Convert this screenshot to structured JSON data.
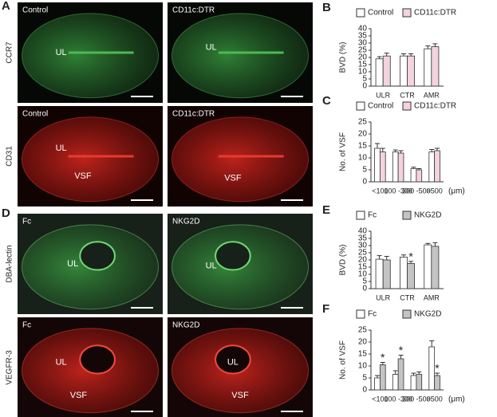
{
  "panel_a": {
    "letter": "A",
    "stains": [
      "CCR7",
      "CD31"
    ],
    "images": [
      {
        "caption": "Control",
        "labels": [
          "UL"
        ]
      },
      {
        "caption": "CD11c:DTR",
        "labels": [
          "UL"
        ]
      },
      {
        "caption": "Control",
        "labels": [
          "UL",
          "VSF"
        ]
      },
      {
        "caption": "CD11c:DTR",
        "labels": [
          "VSF"
        ]
      }
    ]
  },
  "panel_d": {
    "letter": "D",
    "stains": [
      "DBA-lectin",
      "VEGFR-3"
    ],
    "images": [
      {
        "caption": "Fc",
        "labels": [
          "UL"
        ]
      },
      {
        "caption": "NKG2D",
        "labels": [
          "UL"
        ]
      },
      {
        "caption": "Fc",
        "labels": [
          "UL",
          "VSF"
        ]
      },
      {
        "caption": "NKG2D",
        "labels": [
          "UL",
          "VSF"
        ]
      }
    ]
  },
  "chart_data": [
    {
      "type": "bar",
      "panel": "B",
      "y_label": "BVD (%)",
      "categories": [
        "ULR",
        "CTR",
        "AMR"
      ],
      "ylim": [
        0,
        40
      ],
      "yticks": [
        0,
        5,
        10,
        15,
        20,
        25,
        30,
        35,
        40
      ],
      "series": [
        {
          "name": "Control",
          "color": "#ffffff",
          "values": [
            19,
            21,
            26
          ],
          "errors": [
            1.5,
            1.5,
            2
          ]
        },
        {
          "name": "CD11c:DTR",
          "color": "#f3d3de",
          "values": [
            21,
            21,
            27.5
          ],
          "errors": [
            2,
            1.5,
            2
          ]
        }
      ]
    },
    {
      "type": "bar",
      "panel": "C",
      "y_label": "No. of VSF",
      "x_unit": "(μm)",
      "categories": [
        "<100",
        "100 -300",
        "300 -500",
        ">500"
      ],
      "ylim": [
        0,
        25
      ],
      "yticks": [
        0,
        5,
        10,
        15,
        20,
        25
      ],
      "series": [
        {
          "name": "Control",
          "color": "#ffffff",
          "values": [
            14,
            12.5,
            5.5,
            12.5
          ],
          "errors": [
            2,
            0.8,
            0.6,
            1
          ]
        },
        {
          "name": "CD11c:DTR",
          "color": "#f3d3de",
          "values": [
            12.5,
            12,
            5,
            13
          ],
          "errors": [
            1.5,
            1,
            0.5,
            1
          ]
        }
      ]
    },
    {
      "type": "bar",
      "panel": "E",
      "y_label": "BVD (%)",
      "categories": [
        "ULR",
        "CTR",
        "AMR"
      ],
      "ylim": [
        0,
        40
      ],
      "yticks": [
        0,
        5,
        10,
        15,
        20,
        25,
        30,
        35,
        40
      ],
      "series": [
        {
          "name": "Fc",
          "color": "#ffffff",
          "values": [
            20.5,
            22,
            30.5
          ],
          "errors": [
            2.5,
            1.5,
            1
          ]
        },
        {
          "name": "NKG2D",
          "color": "#c4c4c4",
          "values": [
            20,
            17.5,
            29.5
          ],
          "errors": [
            2.5,
            1.5,
            2.5
          ],
          "significance": [
            null,
            "*",
            null
          ]
        }
      ]
    },
    {
      "type": "bar",
      "panel": "F",
      "y_label": "No. of VSF",
      "x_unit": "(μm)",
      "categories": [
        "<100",
        "100 -300",
        "300 -500",
        ">500"
      ],
      "ylim": [
        0,
        25
      ],
      "yticks": [
        0,
        5,
        10,
        15,
        20,
        25
      ],
      "series": [
        {
          "name": "Fc",
          "color": "#ffffff",
          "values": [
            5,
            6.5,
            6,
            18
          ],
          "errors": [
            1,
            1.5,
            1,
            2.5
          ]
        },
        {
          "name": "NKG2D",
          "color": "#c4c4c4",
          "values": [
            10.5,
            13,
            6.5,
            6
          ],
          "errors": [
            1,
            1.5,
            1,
            1
          ],
          "significance": [
            "*",
            "*",
            null,
            "*"
          ]
        }
      ]
    }
  ]
}
